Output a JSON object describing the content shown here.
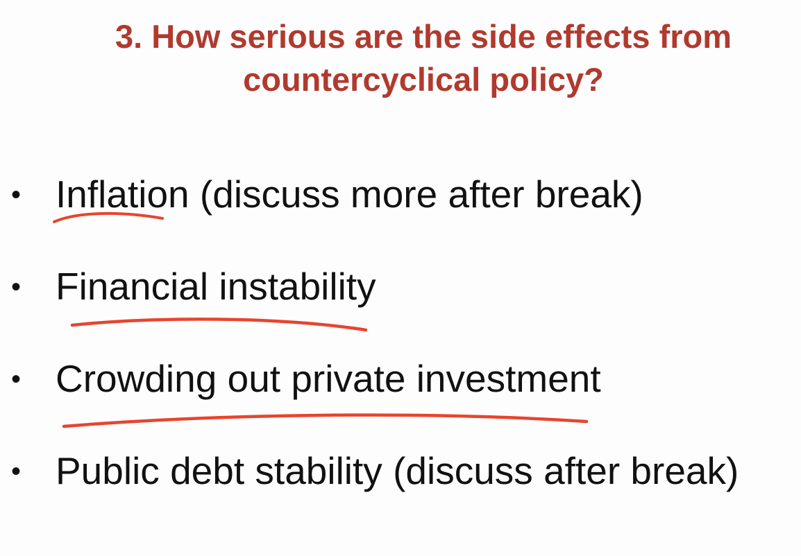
{
  "slide": {
    "title_line1": "3. How serious are the side effects from",
    "title_line2": "countercyclical policy?",
    "title_color": "#b03a2e",
    "bullet_glyph": "•",
    "items": [
      {
        "label": "Inflation (discuss more after break)",
        "underlined": true
      },
      {
        "label": "Financial instability",
        "underlined": true
      },
      {
        "label": "Crowding out private investment",
        "underlined": true
      },
      {
        "label": "Public debt stability (discuss after break)",
        "underlined": false
      }
    ],
    "annotation_color": "#e8442e"
  }
}
